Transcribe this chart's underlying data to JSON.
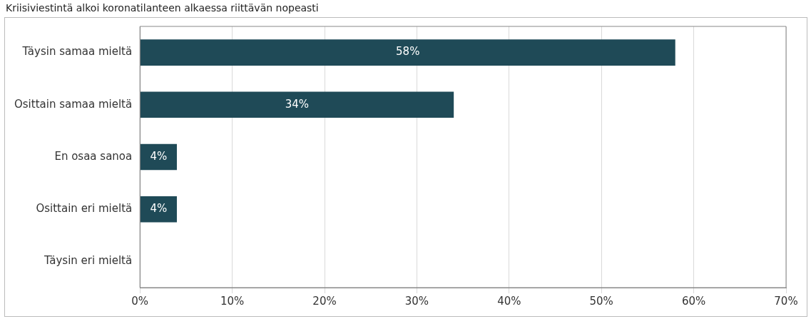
{
  "chart_data": {
    "type": "bar",
    "orientation": "horizontal",
    "title": "Kriisiviestintä alkoi koronatilanteen alkaessa riittävän nopeasti",
    "categories": [
      "Täysin samaa mieltä",
      "Osittain samaa mieltä",
      "En osaa sanoa",
      "Osittain eri mieltä",
      "Täysin eri mieltä"
    ],
    "values": [
      58,
      34,
      4,
      4,
      0
    ],
    "value_labels": [
      "58%",
      "34%",
      "4%",
      "4%",
      null
    ],
    "color": "#1f4a57",
    "xlim": [
      0,
      70
    ],
    "xticks": [
      {
        "value": 0,
        "label": "0%"
      },
      {
        "value": 10,
        "label": "10%"
      },
      {
        "value": 20,
        "label": "20%"
      },
      {
        "value": 30,
        "label": "30%"
      },
      {
        "value": 40,
        "label": "40%"
      },
      {
        "value": 50,
        "label": "50%"
      },
      {
        "value": 60,
        "label": "60%"
      },
      {
        "value": 70,
        "label": "70%"
      }
    ],
    "grid": "x"
  }
}
